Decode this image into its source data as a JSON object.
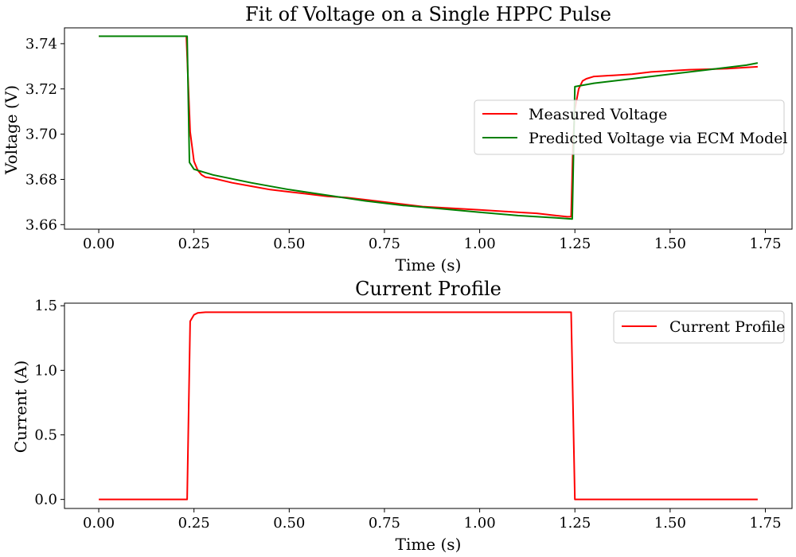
{
  "chart_data": [
    {
      "type": "line",
      "title": "Fit of Voltage on a Single HPPC Pulse",
      "xlabel": "Time (s)",
      "ylabel": "Voltage (V)",
      "xlim": [
        -0.09,
        1.82
      ],
      "ylim": [
        3.658,
        3.747
      ],
      "xticks": [
        0.0,
        0.25,
        0.5,
        0.75,
        1.0,
        1.25,
        1.5,
        1.75
      ],
      "xtick_labels": [
        "0.00",
        "0.25",
        "0.50",
        "0.75",
        "1.00",
        "1.25",
        "1.50",
        "1.75"
      ],
      "yticks": [
        3.66,
        3.68,
        3.7,
        3.72,
        3.74
      ],
      "ytick_labels": [
        "3.66",
        "3.68",
        "3.70",
        "3.72",
        "3.74"
      ],
      "grid": false,
      "legend": "center-right",
      "series": [
        {
          "name": "Measured Voltage",
          "color": "#ff0000",
          "x": [
            0.0,
            0.1,
            0.2,
            0.23,
            0.24,
            0.25,
            0.26,
            0.27,
            0.28,
            0.3,
            0.35,
            0.4,
            0.45,
            0.5,
            0.55,
            0.6,
            0.65,
            0.7,
            0.75,
            0.8,
            0.85,
            0.9,
            0.95,
            1.0,
            1.05,
            1.1,
            1.15,
            1.2,
            1.23,
            1.24,
            1.245,
            1.25,
            1.26,
            1.27,
            1.28,
            1.3,
            1.35,
            1.4,
            1.45,
            1.5,
            1.55,
            1.6,
            1.65,
            1.7,
            1.73
          ],
          "y": [
            3.7433,
            3.7433,
            3.7433,
            3.7433,
            3.701,
            3.688,
            3.684,
            3.682,
            3.681,
            3.6805,
            3.6785,
            3.677,
            3.6755,
            3.6745,
            3.6735,
            3.6725,
            3.672,
            3.671,
            3.67,
            3.669,
            3.668,
            3.6675,
            3.667,
            3.6665,
            3.666,
            3.6655,
            3.665,
            3.664,
            3.6635,
            3.6635,
            3.695,
            3.711,
            3.72,
            3.7235,
            3.7245,
            3.7255,
            3.726,
            3.7265,
            3.7275,
            3.728,
            3.7285,
            3.7287,
            3.729,
            3.7295,
            3.7298
          ]
        },
        {
          "name": "Predicted Voltage via ECM Model",
          "color": "#008000",
          "x": [
            0.0,
            0.1,
            0.2,
            0.232,
            0.238,
            0.25,
            0.3,
            0.4,
            0.5,
            0.6,
            0.7,
            0.8,
            0.9,
            1.0,
            1.1,
            1.2,
            1.243,
            1.25,
            1.3,
            1.4,
            1.5,
            1.6,
            1.7,
            1.73
          ],
          "y": [
            3.7433,
            3.7433,
            3.7433,
            3.7433,
            3.6875,
            3.6845,
            3.682,
            3.6785,
            3.6755,
            3.673,
            3.6705,
            3.6685,
            3.667,
            3.6655,
            3.664,
            3.663,
            3.6625,
            3.721,
            3.7225,
            3.7245,
            3.7265,
            3.7285,
            3.7305,
            3.7315
          ]
        }
      ]
    },
    {
      "type": "line",
      "title": "Current Profile",
      "xlabel": "Time (s)",
      "ylabel": "Current (A)",
      "xlim": [
        -0.09,
        1.82
      ],
      "ylim": [
        -0.07,
        1.52
      ],
      "xticks": [
        0.0,
        0.25,
        0.5,
        0.75,
        1.0,
        1.25,
        1.5,
        1.75
      ],
      "xtick_labels": [
        "0.00",
        "0.25",
        "0.50",
        "0.75",
        "1.00",
        "1.25",
        "1.50",
        "1.75"
      ],
      "yticks": [
        0.0,
        0.5,
        1.0,
        1.5
      ],
      "ytick_labels": [
        "0.0",
        "0.5",
        "1.0",
        "1.5"
      ],
      "grid": false,
      "legend": "top-right",
      "series": [
        {
          "name": "Current Profile",
          "color": "#ff0000",
          "x": [
            0.0,
            0.1,
            0.2,
            0.232,
            0.24,
            0.25,
            0.26,
            0.28,
            0.5,
            0.75,
            1.0,
            1.24,
            1.25,
            1.5,
            1.73
          ],
          "y": [
            0.0,
            0.0,
            0.0,
            0.0,
            1.38,
            1.43,
            1.445,
            1.45,
            1.45,
            1.45,
            1.45,
            1.45,
            0.0,
            0.0,
            0.0
          ]
        }
      ]
    }
  ]
}
